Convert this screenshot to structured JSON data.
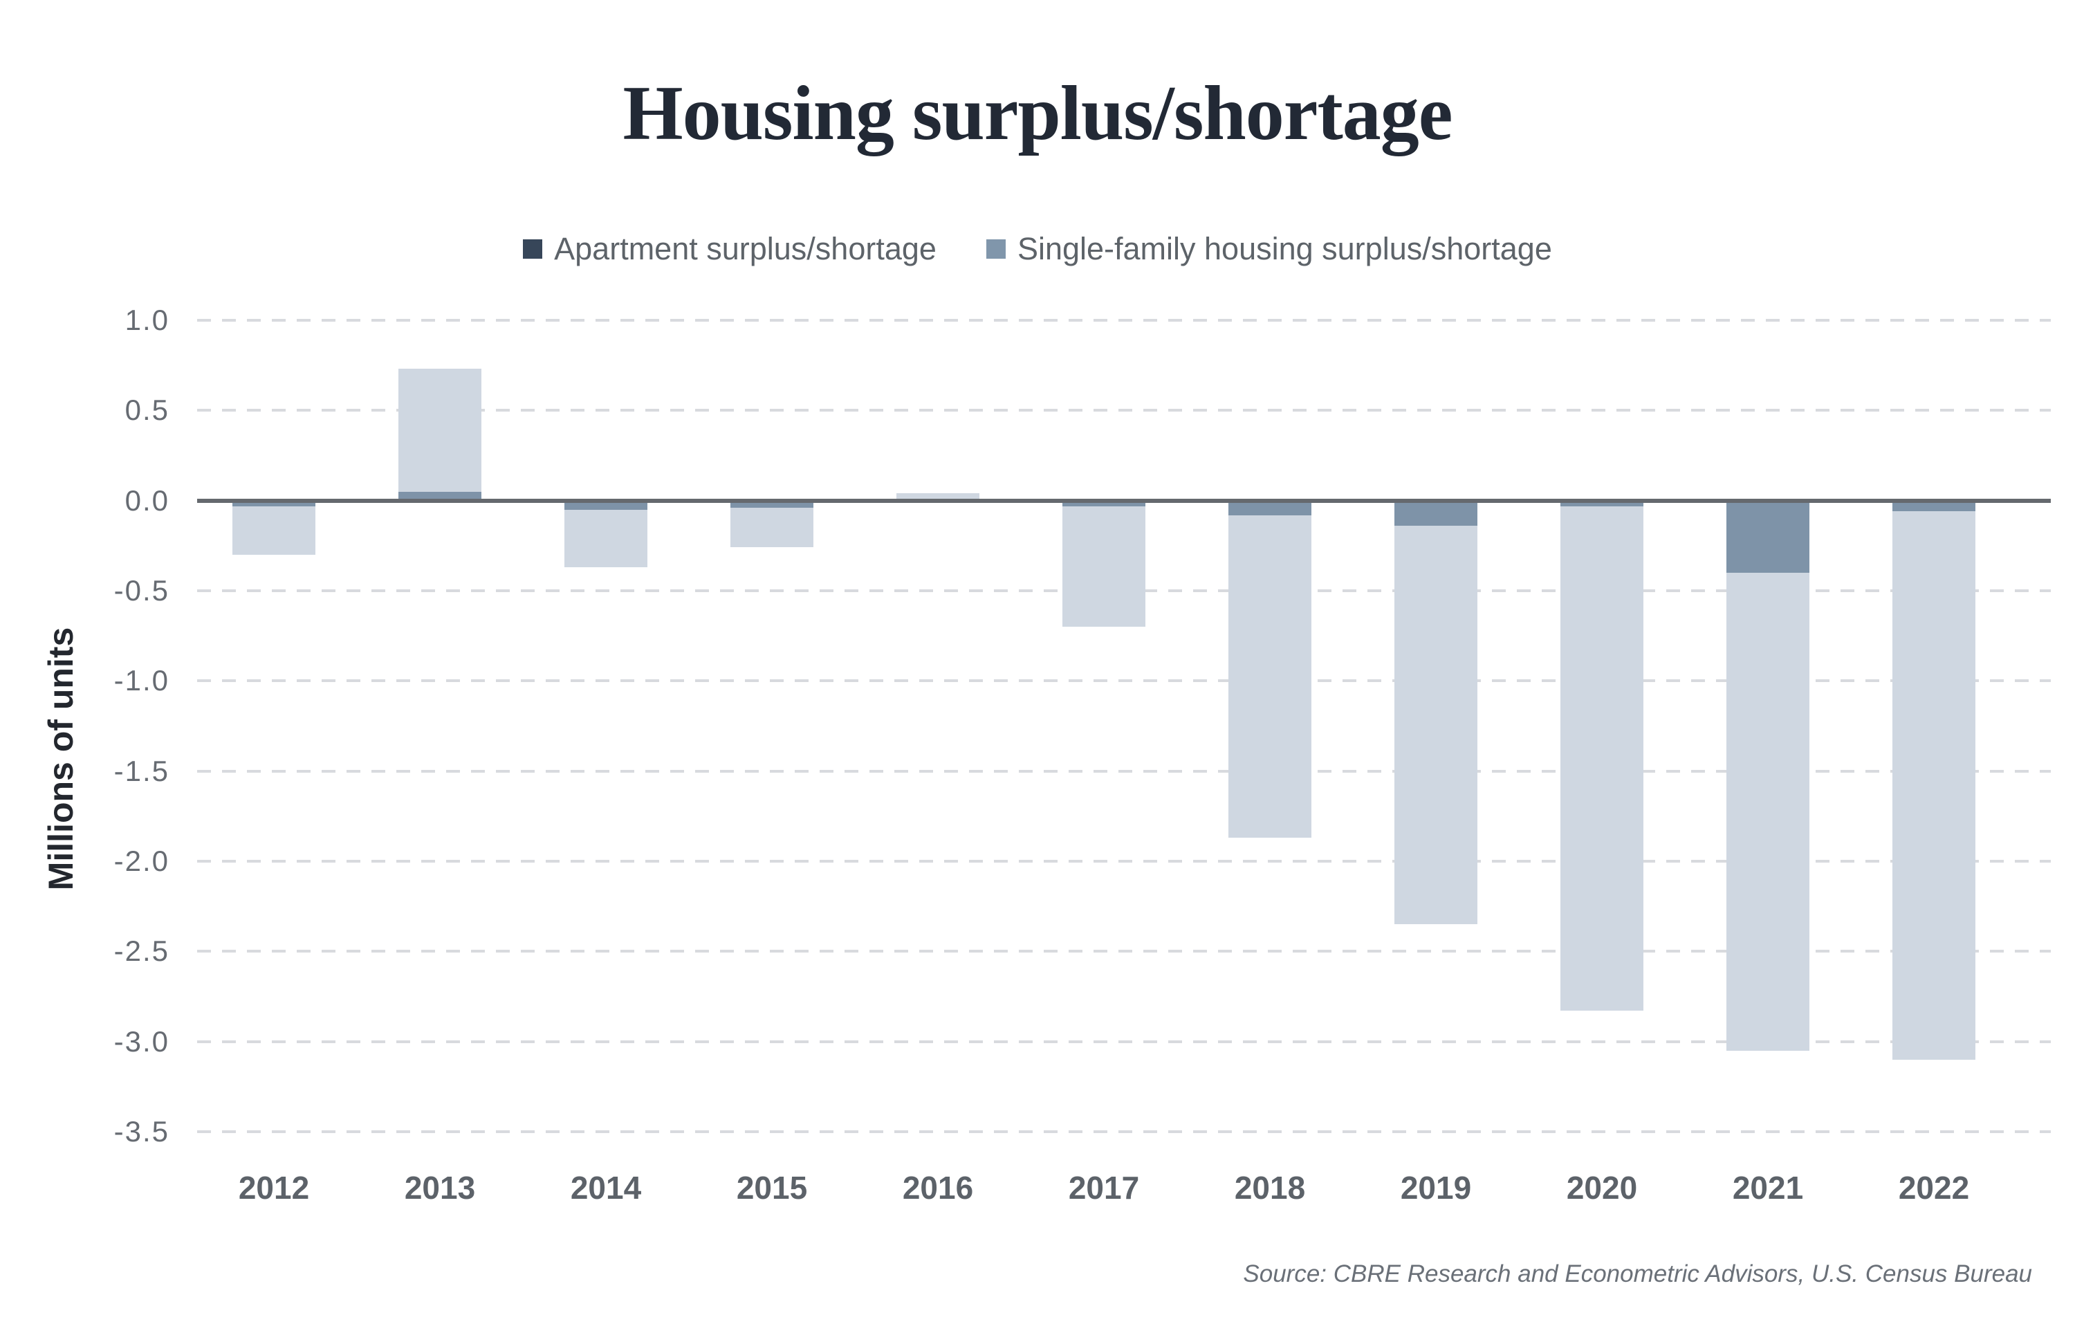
{
  "title": "Housing surplus/shortage",
  "legend": {
    "items": [
      {
        "label": "Apartment surplus/shortage",
        "swatch_color": "#374659"
      },
      {
        "label": "Single-family housing surplus/shortage",
        "swatch_color": "#8096ab"
      }
    ]
  },
  "y_axis": {
    "title": "Millions of units",
    "tick_labels": [
      "1.0",
      "0.5",
      "0.0",
      "-0.5",
      "-1.0",
      "-1.5",
      "-2.0",
      "-2.5",
      "-3.0",
      "-3.5"
    ]
  },
  "source": "Source: CBRE Research and Econometric Advisors, U.S. Census Bureau",
  "colors": {
    "apartment_bar": "#7e93a8",
    "single_family_bar": "#cfd7e1",
    "gridline": "#d8dade",
    "zero_line": "#65696e",
    "title_text": "#222935",
    "axis_text": "#666b72"
  },
  "chart_data": {
    "type": "bar",
    "stacked": true,
    "title": "Housing surplus/shortage",
    "ylabel": "Millions of units",
    "xlabel": "",
    "ylim": [
      -3.5,
      1.0
    ],
    "grid": "dashed horizontal",
    "legend_position": "top center",
    "categories": [
      "2012",
      "2013",
      "2014",
      "2015",
      "2016",
      "2017",
      "2018",
      "2019",
      "2020",
      "2021",
      "2022"
    ],
    "series": [
      {
        "name": "Apartment surplus/shortage",
        "color": "#7e93a8",
        "values": [
          -0.03,
          0.05,
          -0.05,
          -0.04,
          0.01,
          -0.03,
          -0.08,
          -0.14,
          -0.03,
          -0.4,
          -0.06
        ]
      },
      {
        "name": "Single-family housing surplus/shortage",
        "color": "#cfd7e1",
        "values": [
          -0.27,
          0.68,
          -0.32,
          -0.22,
          0.03,
          -0.67,
          -1.79,
          -2.21,
          -2.8,
          -2.65,
          -3.04
        ]
      }
    ],
    "totals": [
      -0.3,
      0.73,
      -0.37,
      -0.26,
      0.04,
      -0.7,
      -1.87,
      -2.35,
      -2.83,
      -3.05,
      -3.1
    ]
  }
}
